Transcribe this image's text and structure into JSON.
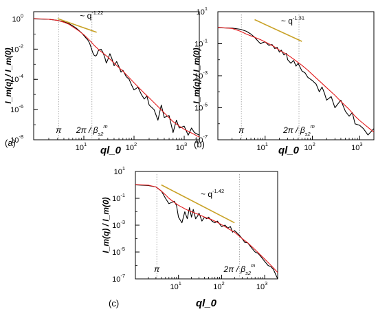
{
  "colors": {
    "data": "#000000",
    "fit": "#e31a1c",
    "slope": "#c9a227",
    "guide": "#888888"
  },
  "chart_data": [
    {
      "type": "line",
      "panel_label": "(a)",
      "ylabel": "I_m(q) / I_m(0)",
      "xlabel": "ql_0",
      "x_scale": "log",
      "y_scale": "log",
      "xlim": [
        1,
        2000
      ],
      "ylim": [
        1e-08,
        3
      ],
      "xticks": [
        {
          "v": 10,
          "label": "10",
          "sup": "1"
        },
        {
          "v": 100,
          "label": "10",
          "sup": "2"
        },
        {
          "v": 1000,
          "label": "10",
          "sup": "3"
        }
      ],
      "yticks": [
        {
          "v": 1,
          "label": "10",
          "sup": "0"
        },
        {
          "v": 0.01,
          "label": "10",
          "sup": "-2"
        },
        {
          "v": 0.0001,
          "label": "10",
          "sup": "-4"
        },
        {
          "v": 1e-06,
          "label": "10",
          "sup": "-6"
        },
        {
          "v": 1e-08,
          "label": "10",
          "sup": "-8"
        }
      ],
      "slope": {
        "text": "~ q",
        "exponent": "-1.22",
        "x": [
          3,
          18
        ],
        "y": [
          1.05,
          0.13
        ]
      },
      "annotations": [
        {
          "text": "π",
          "x": 3.14
        },
        {
          "text": "2π / β",
          "sub": "s2",
          "sup": "m",
          "x": 14.5
        }
      ],
      "series": [
        {
          "role": "data",
          "x": [
            1,
            2,
            3,
            4,
            5,
            6,
            7,
            8,
            9,
            10,
            11,
            12,
            13,
            14,
            15,
            16,
            17,
            18,
            19,
            20,
            22,
            24,
            26,
            28,
            30,
            33,
            36,
            40,
            45,
            50,
            55,
            60,
            70,
            80,
            90,
            100,
            120,
            140,
            160,
            180,
            200,
            250,
            300,
            350,
            400,
            500,
            600,
            700,
            800,
            1000,
            1200,
            1400,
            1600,
            2000
          ],
          "y": [
            1.0,
            0.95,
            0.8,
            0.65,
            0.5,
            0.35,
            0.25,
            0.17,
            0.12,
            0.08,
            0.055,
            0.04,
            0.025,
            0.012,
            0.006,
            0.004,
            0.0035,
            0.004,
            0.007,
            0.009,
            0.01,
            0.006,
            0.003,
            0.0012,
            0.002,
            0.005,
            0.0025,
            0.0008,
            0.0015,
            0.0007,
            0.0003,
            0.0004,
            0.00015,
            0.0001,
            4e-05,
            2e-05,
            3e-05,
            1e-05,
            5e-06,
            8e-06,
            2e-06,
            1e-06,
            2e-07,
            2e-06,
            3e-07,
            4e-07,
            3e-08,
            2e-07,
            6e-08,
            8e-08,
            2e-08,
            6e-08,
            3e-08,
            2e-08
          ]
        },
        {
          "role": "fit",
          "x": [
            1,
            2,
            3,
            4,
            5,
            6,
            8,
            10,
            12,
            14,
            16,
            20,
            25,
            30,
            40,
            50,
            60,
            80,
            100,
            150,
            200,
            300,
            400,
            600,
            800,
            1000,
            1500,
            2000
          ],
          "y": [
            1.05,
            0.95,
            0.8,
            0.6,
            0.45,
            0.3,
            0.16,
            0.09,
            0.05,
            0.03,
            0.018,
            0.009,
            0.005,
            0.003,
            0.0012,
            0.0006,
            0.00035,
            0.00013,
            6e-05,
            1.5e-05,
            6e-06,
            1.6e-06,
            6e-07,
            1.6e-07,
            8e-08,
            5e-08,
            2.5e-08,
            1.5e-08
          ]
        }
      ]
    },
    {
      "type": "line",
      "panel_label": "(b)",
      "ylabel": "I_m(q) / I_m(0)",
      "xlabel": "ql_0",
      "x_scale": "log",
      "y_scale": "log",
      "xlim": [
        1,
        2000
      ],
      "ylim": [
        1e-07,
        10
      ],
      "xticks": [
        {
          "v": 10,
          "label": "10",
          "sup": "1"
        },
        {
          "v": 100,
          "label": "10",
          "sup": "2"
        },
        {
          "v": 1000,
          "label": "10",
          "sup": "3"
        }
      ],
      "yticks": [
        {
          "v": 10,
          "label": "10",
          "sup": "1"
        },
        {
          "v": 0.1,
          "label": "10",
          "sup": "-1"
        },
        {
          "v": 0.001,
          "label": "10",
          "sup": "-3"
        },
        {
          "v": 1e-05,
          "label": "10",
          "sup": "-5"
        },
        {
          "v": 1e-07,
          "label": "10",
          "sup": "-7"
        }
      ],
      "slope": {
        "text": "~ q",
        "exponent": "-1.31",
        "x": [
          6,
          60
        ],
        "y": [
          3.2,
          0.14
        ]
      },
      "annotations": [
        {
          "text": "π",
          "x": 3.14
        },
        {
          "text": "2π / β",
          "sub": "s2",
          "sup": "m",
          "x": 52
        }
      ],
      "series": [
        {
          "role": "data",
          "x": [
            1,
            2,
            3,
            4,
            5,
            6,
            7,
            8,
            9,
            10,
            12,
            14,
            16,
            18,
            20,
            22,
            25,
            28,
            30,
            35,
            40,
            45,
            50,
            60,
            70,
            80,
            100,
            120,
            140,
            160,
            180,
            200,
            250,
            300,
            400,
            500,
            600,
            700,
            800,
            1000,
            1200,
            1500,
            2000
          ],
          "y": [
            1.0,
            0.95,
            0.8,
            0.6,
            0.4,
            0.25,
            0.15,
            0.1,
            0.12,
            0.13,
            0.08,
            0.09,
            0.05,
            0.06,
            0.03,
            0.04,
            0.02,
            0.025,
            0.01,
            0.006,
            0.009,
            0.004,
            0.006,
            0.002,
            0.0015,
            0.0008,
            0.0005,
            0.0003,
            0.0001,
            0.0002,
            8e-05,
            3e-05,
            5e-05,
            1e-05,
            3e-05,
            6e-06,
            3e-06,
            5e-06,
            1e-06,
            8e-07,
            5e-07,
            2e-07,
            5e-07
          ]
        },
        {
          "role": "fit",
          "x": [
            1,
            2,
            3,
            4,
            6,
            8,
            10,
            15,
            20,
            30,
            40,
            60,
            80,
            100,
            150,
            200,
            300,
            400,
            600,
            800,
            1000,
            1500,
            2000
          ],
          "y": [
            1.05,
            0.9,
            0.6,
            0.4,
            0.25,
            0.18,
            0.13,
            0.07,
            0.04,
            0.02,
            0.011,
            0.0045,
            0.0022,
            0.0012,
            0.0004,
            0.00018,
            6e-05,
            2.5e-05,
            8e-06,
            3e-06,
            1.6e-06,
            6e-07,
            3e-07
          ]
        }
      ]
    },
    {
      "type": "line",
      "panel_label": "(c)",
      "ylabel": "I_m(q) / I_m(0)",
      "xlabel": "ql_0",
      "x_scale": "log",
      "y_scale": "log",
      "xlim": [
        1,
        2000
      ],
      "ylim": [
        1e-07,
        10
      ],
      "xticks": [
        {
          "v": 10,
          "label": "10",
          "sup": "1"
        },
        {
          "v": 100,
          "label": "10",
          "sup": "2"
        },
        {
          "v": 1000,
          "label": "10",
          "sup": "3"
        }
      ],
      "yticks": [
        {
          "v": 10,
          "label": "10",
          "sup": "1"
        },
        {
          "v": 0.1,
          "label": "10",
          "sup": "-1"
        },
        {
          "v": 0.001,
          "label": "10",
          "sup": "-3"
        },
        {
          "v": 1e-05,
          "label": "10",
          "sup": "-5"
        },
        {
          "v": 1e-07,
          "label": "10",
          "sup": "-7"
        }
      ],
      "slope": {
        "text": "~ q",
        "exponent": "-1.42",
        "x": [
          4,
          200
        ],
        "y": [
          1.0,
          0.0015
        ]
      },
      "annotations": [
        {
          "text": "π",
          "x": 3.14
        },
        {
          "text": "2π / β",
          "sub": "s2",
          "sup": "m",
          "x": 260
        }
      ],
      "series": [
        {
          "role": "data",
          "x": [
            1,
            2,
            3,
            4,
            5,
            6,
            7,
            8,
            9,
            10,
            12,
            14,
            16,
            18,
            20,
            22,
            25,
            28,
            30,
            35,
            40,
            45,
            50,
            60,
            70,
            80,
            100,
            120,
            140,
            160,
            180,
            200,
            250,
            300,
            350,
            400,
            500,
            600,
            700,
            800,
            1000,
            1200,
            1400,
            1600,
            2000
          ],
          "y": [
            1.0,
            0.9,
            0.7,
            0.35,
            0.1,
            0.04,
            0.05,
            0.06,
            0.03,
            0.004,
            0.0015,
            0.01,
            0.003,
            0.02,
            0.004,
            0.015,
            0.003,
            0.005,
            0.008,
            0.002,
            0.004,
            0.003,
            0.004,
            0.002,
            0.0015,
            0.002,
            0.0008,
            0.001,
            0.0006,
            0.0008,
            0.0003,
            0.0004,
            0.0002,
            0.0001,
            5e-05,
            5e-05,
            2e-05,
            1e-05,
            8e-06,
            5e-06,
            2e-06,
            1e-06,
            8e-07,
            5e-07,
            1e-07
          ]
        },
        {
          "role": "fit",
          "x": [
            1,
            2,
            3,
            4,
            5,
            6,
            8,
            10,
            15,
            20,
            30,
            40,
            60,
            80,
            100,
            150,
            200,
            300,
            400,
            600,
            800,
            1000,
            1500,
            2000
          ],
          "y": [
            1.05,
            0.95,
            0.7,
            0.35,
            0.18,
            0.1,
            0.05,
            0.03,
            0.015,
            0.01,
            0.006,
            0.004,
            0.0025,
            0.0016,
            0.0011,
            0.0005,
            0.0003,
            0.0001,
            5e-05,
            1.5e-05,
            6e-06,
            3e-06,
            8e-07,
            3e-07
          ]
        }
      ]
    }
  ]
}
